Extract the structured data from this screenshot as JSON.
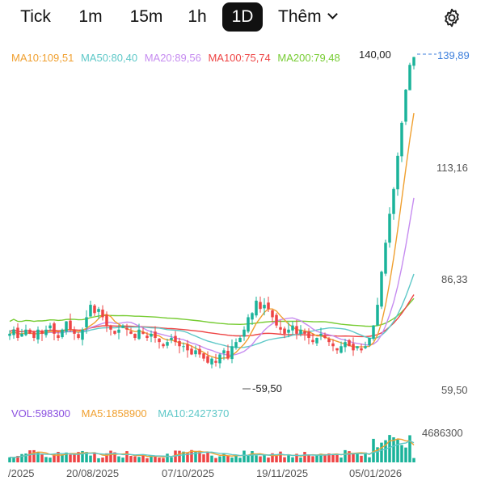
{
  "toolbar": {
    "tabs": [
      "Tick",
      "1m",
      "15m",
      "1h",
      "1D"
    ],
    "active_tab": "1D",
    "more_label": "Thêm",
    "settings_icon": "gear-icon"
  },
  "indicators": {
    "ma10": {
      "label": "MA10:109,51",
      "color": "#f0a030"
    },
    "ma50": {
      "label": "MA50:80,40",
      "color": "#5ec8c8"
    },
    "ma20": {
      "label": "MA20:89,56",
      "color": "#c68cf0"
    },
    "ma100": {
      "label": "MA100:75,74",
      "color": "#ee4444"
    },
    "ma200": {
      "label": "MA200:79,48",
      "color": "#77cc33"
    }
  },
  "volume": {
    "vol": {
      "label": "VOL:598300",
      "color": "#8a4fe0"
    },
    "ma5": {
      "label": "MA5:1858900",
      "color": "#f0a030"
    },
    "ma10": {
      "label": "MA10:2427370",
      "color": "#5ec8c8"
    },
    "max_label": "4686300"
  },
  "price_axis": [
    "113,16",
    "86,33",
    "59,50"
  ],
  "last_price": "139,89",
  "high_marker": "140,00",
  "low_marker": "59,50",
  "date_axis": [
    "/2025",
    "20/08/2025",
    "07/10/2025",
    "19/11/2025",
    "05/01/2026"
  ],
  "colors": {
    "up": "#1ab39a",
    "down": "#ee4444",
    "last_price": "#3d7fdc"
  },
  "chart_data": {
    "type": "candlestick",
    "y_range": [
      59.5,
      140
    ],
    "closes": [
      73,
      74,
      72,
      73,
      74,
      73,
      72,
      74,
      73,
      74,
      75,
      73,
      72,
      74,
      76,
      74,
      73,
      72,
      74,
      77,
      80,
      78,
      79,
      77,
      75,
      74,
      73,
      74,
      75,
      74,
      73,
      72,
      74,
      73,
      72,
      73,
      72,
      71,
      70,
      71,
      72,
      71,
      70,
      70,
      69,
      68,
      69,
      68,
      67,
      66,
      67,
      66,
      68,
      69,
      67,
      70,
      71,
      72,
      74,
      77,
      78,
      81,
      79,
      80,
      79,
      77,
      75,
      74,
      73,
      74,
      75,
      73,
      74,
      73,
      72,
      71,
      72,
      73,
      72,
      71,
      70,
      69,
      70,
      71,
      70,
      69,
      70,
      69,
      70,
      72,
      75,
      80,
      88,
      95,
      102,
      108,
      116,
      124,
      132,
      138,
      139.89
    ],
    "volume_max": 4686300,
    "volume_last": 598300
  }
}
